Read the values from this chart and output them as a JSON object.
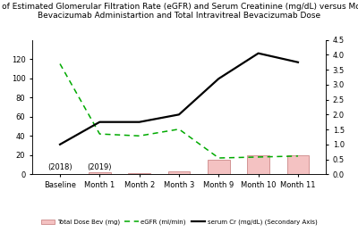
{
  "title_line1": "Trends of Estimated Glomerular Filtration Rate (eGFR) and Serum Creatinine (mg/dL) versus Month of",
  "title_line2": "Bevacizumab Administartion and Total Intravitreal Bevacizumab Dose",
  "categories": [
    "Baseline",
    "Month 1",
    "Month 2",
    "Month 3",
    "Month 9",
    "Month 10",
    "Month 11"
  ],
  "year_labels": [
    [
      "(2018)",
      0
    ],
    [
      "(2019)",
      1
    ]
  ],
  "bar_values": [
    0,
    2,
    1.5,
    3,
    15,
    20,
    20
  ],
  "bar_color": "#f4c2c2",
  "bar_edgecolor": "#cc8888",
  "egfr_values": [
    115,
    42,
    40,
    47,
    17,
    18,
    19
  ],
  "serum_cr_values": [
    1.0,
    1.75,
    1.75,
    2.0,
    3.2,
    4.05,
    3.75
  ],
  "egfr_color": "#00aa00",
  "serum_cr_color": "#000000",
  "ylim_left": [
    0,
    140
  ],
  "ylim_right": [
    0,
    4.5
  ],
  "yticks_left": [
    0,
    20,
    40,
    60,
    80,
    100,
    120
  ],
  "yticks_right": [
    0.0,
    0.5,
    1.0,
    1.5,
    2.0,
    2.5,
    3.0,
    3.5,
    4.0,
    4.5
  ],
  "legend_labels": [
    "Total Dose Bev (mg)",
    "eGFR (ml/min)",
    "serum Cr (mg/dL) (Secondary Axis)"
  ],
  "background_color": "#ffffff",
  "title_fontsize": 6.5,
  "tick_fontsize": 6.0
}
